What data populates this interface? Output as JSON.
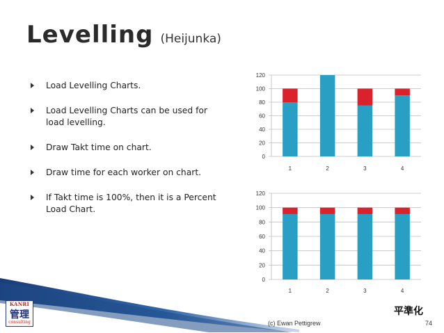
{
  "slide": {
    "title": "Levelling",
    "subtitle": "(Heijunka)",
    "bullets": [
      "Load Levelling Charts.",
      "Load Levelling Charts can be used for load levelling.",
      "Draw Takt time on chart.",
      "Draw time for each worker on chart.",
      "If Takt time is 100%, then it is a Percent Load Chart."
    ],
    "kanji": "平準化",
    "credit": "(c) Ewan Pettigrew",
    "page_number": "74",
    "logo": {
      "line1": "KANRI",
      "line2": "管理",
      "line3": "consulting"
    }
  },
  "colors": {
    "bar": "#2a9fc4",
    "overload": "#d9222b",
    "grid": "#bdbdbd"
  },
  "chart_data": [
    {
      "type": "bar",
      "stacked": true,
      "categories": [
        "1",
        "2",
        "3",
        "4"
      ],
      "series": [
        {
          "values": [
            80,
            120,
            75,
            90
          ]
        },
        {
          "values": [
            20,
            0,
            25,
            10
          ]
        }
      ],
      "ylim": [
        0,
        120
      ],
      "yticks": [
        "0",
        "20",
        "40",
        "60",
        "80",
        "100",
        "120"
      ],
      "grid": true
    },
    {
      "type": "bar",
      "stacked": true,
      "categories": [
        "1",
        "2",
        "3",
        "4"
      ],
      "series": [
        {
          "values": [
            91,
            91,
            91,
            91
          ]
        },
        {
          "values": [
            9,
            9,
            9,
            9
          ]
        }
      ],
      "ylim": [
        0,
        120
      ],
      "yticks": [
        "0",
        "20",
        "40",
        "60",
        "80",
        "100",
        "120"
      ],
      "grid": true
    }
  ]
}
